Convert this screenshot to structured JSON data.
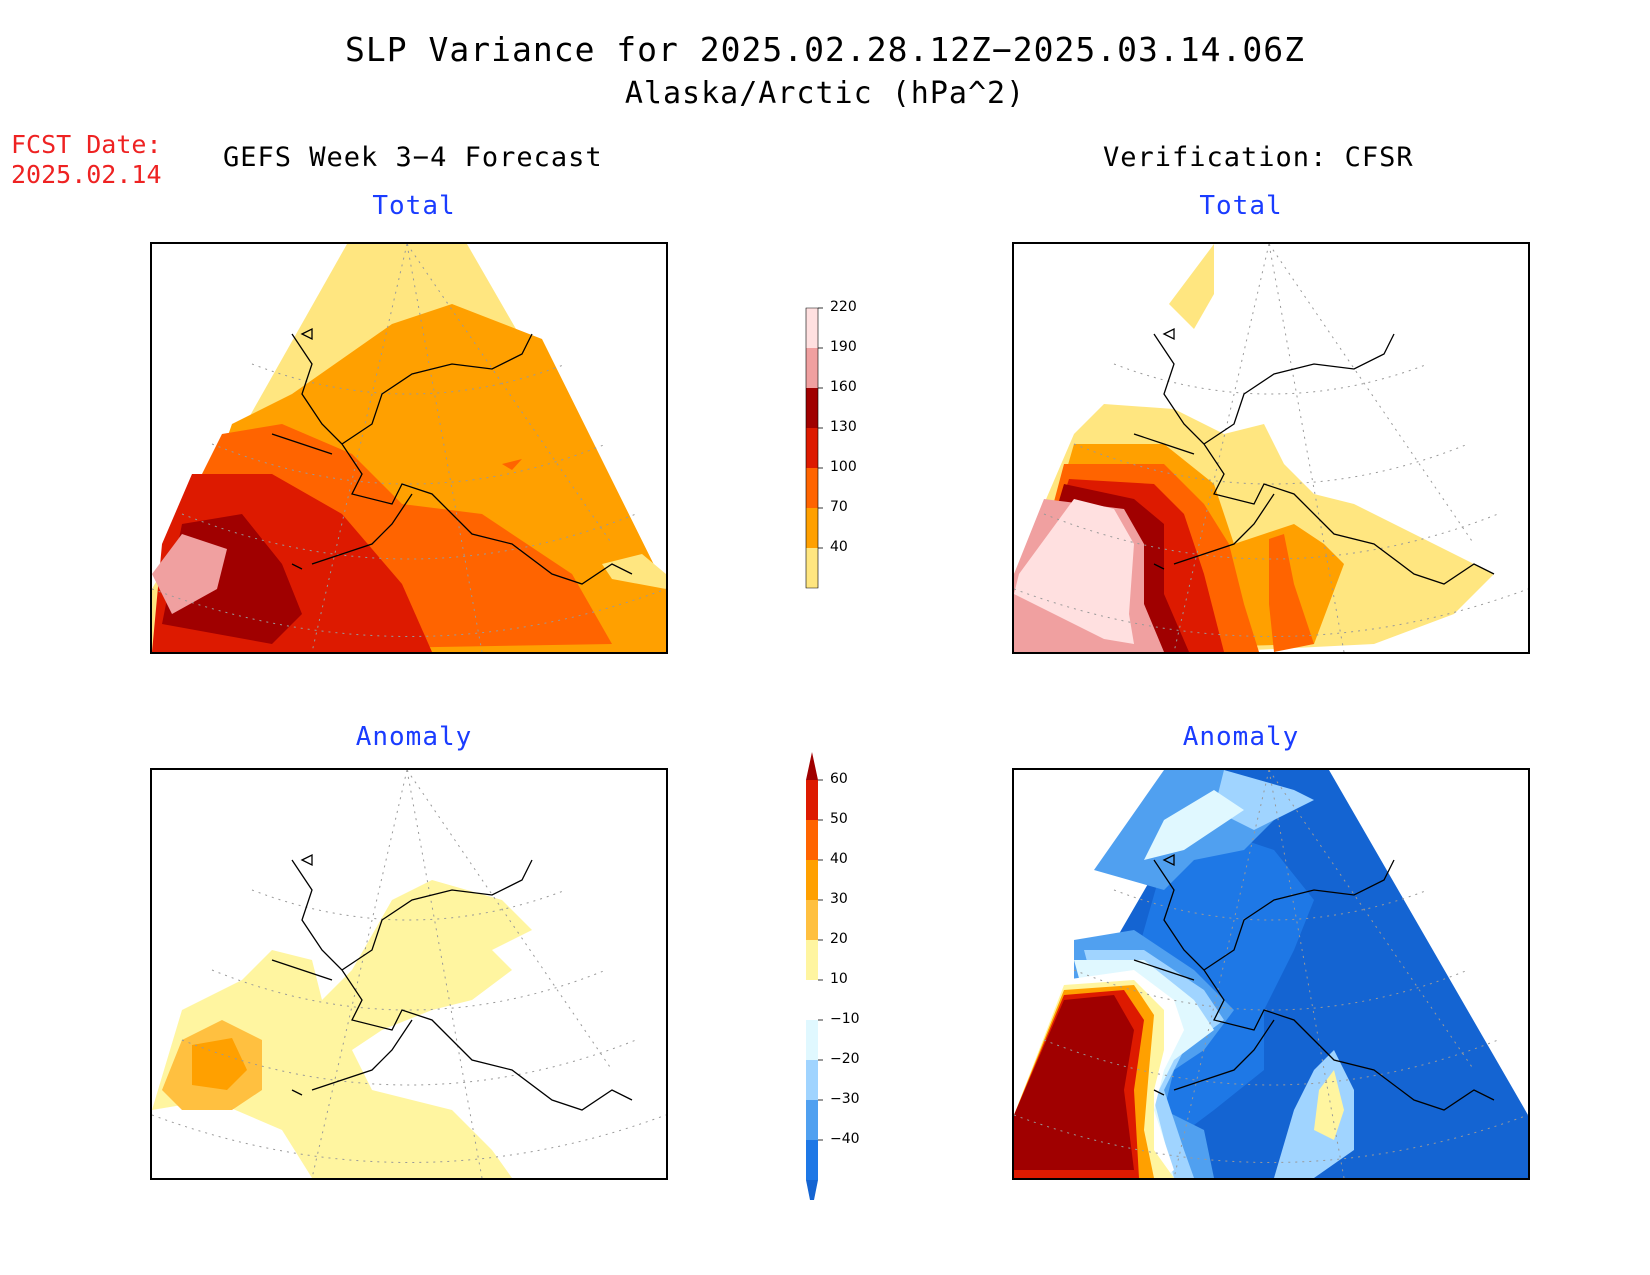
{
  "header": {
    "title": "SLP Variance for 2025.02.28.12Z−2025.03.14.06Z",
    "subtitle": "Alaska/Arctic (hPa^2)"
  },
  "fcst_date": {
    "label": "FCST Date:",
    "value": "2025.02.14"
  },
  "columns": {
    "left": "GEFS Week 3−4 Forecast",
    "right": "Verification: CFSR"
  },
  "panels": {
    "top_left_label": "Total",
    "top_right_label": "Total",
    "bottom_left_label": "Anomaly",
    "bottom_right_label": "Anomaly"
  },
  "colorbar_total": {
    "levels": [
      "40",
      "70",
      "100",
      "130",
      "160",
      "190",
      "220"
    ],
    "colors": [
      "#ffe680",
      "#ffa000",
      "#ff6400",
      "#dd1a00",
      "#a00000",
      "#f0a0a0",
      "#ffe0e0"
    ]
  },
  "colorbar_anom": {
    "levels": [
      "60",
      "50",
      "40",
      "30",
      "20",
      "10",
      "−10",
      "−20",
      "−30",
      "−40"
    ],
    "colors": [
      "#a00000",
      "#dd1a00",
      "#ff6400",
      "#ffa000",
      "#ffc040",
      "#fff5a0",
      "#ffffff",
      "#e0f8ff",
      "#a0d4ff",
      "#50a0f0",
      "#1e78e6",
      "#1464d2"
    ]
  }
}
